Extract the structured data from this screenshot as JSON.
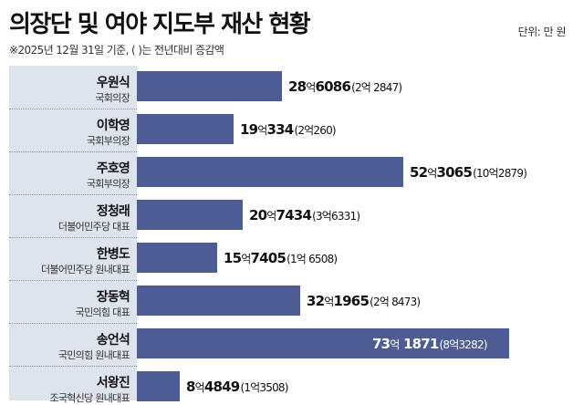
{
  "title": "의장단 및 여야 지도부 재산 현황",
  "unit_label": "단위: 만 원",
  "note": "※2025년 12월 31일 기준, ( )는 전년대비 증감액",
  "colors": {
    "bar": "#4e5c96",
    "panel": "#dde4ee"
  },
  "chart_data": {
    "type": "bar",
    "orientation": "horizontal",
    "unit": "만 원",
    "categories": [
      "우원식",
      "이학영",
      "주호영",
      "정청래",
      "한병도",
      "장동혁",
      "송언석",
      "서왕진"
    ],
    "roles": [
      "국회의장",
      "국회부의장",
      "국회부의장",
      "더불어민주당 대표",
      "더불어민주당 원내대표",
      "국민의힘 대표",
      "국민의힘 원내대표",
      "조국혁신당 원내대표"
    ],
    "values": [
      286086,
      190334,
      523065,
      207434,
      157405,
      321965,
      731871,
      84849
    ],
    "labels": [
      {
        "eok": "28",
        "eok_unit": "억",
        "rest": "6086",
        "change": "(2억 2847)"
      },
      {
        "eok": "19",
        "eok_unit": "억",
        "rest": "334",
        "change": "(2억260)"
      },
      {
        "eok": "52",
        "eok_unit": "억",
        "rest": "3065",
        "change": "(10억2879)"
      },
      {
        "eok": "20",
        "eok_unit": "억",
        "rest": "7434",
        "change": "(3억6331)"
      },
      {
        "eok": "15",
        "eok_unit": "억",
        "rest": "7405",
        "change": "(1억 6508)"
      },
      {
        "eok": "32",
        "eok_unit": "억",
        "rest": "1965",
        "change": "(2억 8473)"
      },
      {
        "eok": "73",
        "eok_unit": "억",
        "rest": " 1871",
        "change": "(8억3282)"
      },
      {
        "eok": "8",
        "eok_unit": "억",
        "rest": "4849",
        "change": "(1억3508)"
      }
    ],
    "changes": [
      22847,
      20260,
      102879,
      36331,
      16508,
      28473,
      83282,
      13508
    ]
  }
}
